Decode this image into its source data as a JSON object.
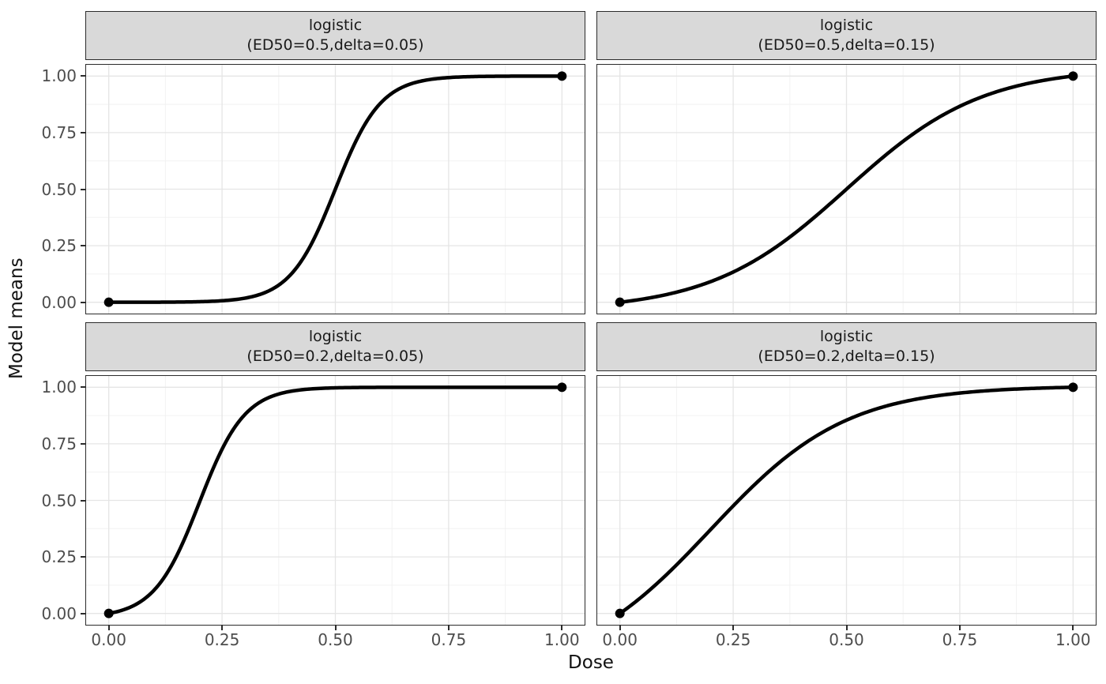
{
  "chart": {
    "xlabel": "Dose",
    "ylabel": "Model means",
    "x_ticks": {
      "values": [
        0,
        0.25,
        0.5,
        0.75,
        1
      ],
      "labels": [
        "0.00",
        "0.25",
        "0.50",
        "0.75",
        "1.00"
      ]
    },
    "y_ticks": {
      "values": [
        0,
        0.25,
        0.5,
        0.75,
        1
      ],
      "labels": [
        "0.00",
        "0.25",
        "0.50",
        "0.75",
        "1.00"
      ]
    },
    "minor_ticks": [
      0.125,
      0.375,
      0.625,
      0.875
    ],
    "expansion": 0.05,
    "colors": {
      "curve": "#000000",
      "strip_bg": "#d9d9d9",
      "panel_border": "#2b2b2b",
      "grid_major": "#e5e5e5",
      "grid_minor": "#f2f2f2",
      "axis_text": "#4d4d4d"
    }
  },
  "chart_data": {
    "type": "line",
    "title": "",
    "xlabel": "Dose",
    "ylabel": "Model means",
    "xlim": [
      0,
      1
    ],
    "ylim": [
      0,
      1
    ],
    "grid": true,
    "legend": "none",
    "facets": [
      {
        "strip_line1": "logistic",
        "strip_line2": "(ED50=0.5,delta=0.05)",
        "model": "logistic",
        "ED50": 0.5,
        "delta": 0.05,
        "x": [
          0,
          0.1,
          0.2,
          0.3,
          0.4,
          0.5,
          0.6,
          0.7,
          0.8,
          0.9,
          1
        ],
        "y": [
          0,
          0.0003,
          0.0024,
          0.0179,
          0.1192,
          0.5,
          0.8808,
          0.9821,
          0.9976,
          0.9997,
          1
        ],
        "endpoints": [
          [
            0,
            0
          ],
          [
            1,
            1
          ]
        ]
      },
      {
        "strip_line1": "logistic",
        "strip_line2": "(ED50=0.5,delta=0.15)",
        "model": "logistic",
        "ED50": 0.5,
        "delta": 0.15,
        "x": [
          0,
          0.1,
          0.2,
          0.3,
          0.4,
          0.5,
          0.6,
          0.7,
          0.8,
          0.9,
          1
        ],
        "y": [
          0,
          0.0328,
          0.091,
          0.1871,
          0.3274,
          0.5,
          0.6726,
          0.8129,
          0.909,
          0.9672,
          1
        ],
        "endpoints": [
          [
            0,
            0
          ],
          [
            1,
            1
          ]
        ]
      },
      {
        "strip_line1": "logistic",
        "strip_line2": "(ED50=0.2,delta=0.05)",
        "model": "logistic",
        "ED50": 0.2,
        "delta": 0.05,
        "x": [
          0,
          0.1,
          0.2,
          0.3,
          0.4,
          0.5,
          0.6,
          0.7,
          0.8,
          0.9,
          1
        ],
        "y": [
          0,
          0.1031,
          0.4909,
          0.8786,
          0.9817,
          0.9975,
          0.9997,
          1,
          1,
          1,
          1
        ],
        "endpoints": [
          [
            0,
            0
          ],
          [
            1,
            1
          ]
        ]
      },
      {
        "strip_line1": "logistic",
        "strip_line2": "(ED50=0.2,delta=0.15)",
        "model": "logistic",
        "ED50": 0.2,
        "delta": 0.15,
        "x": [
          0,
          0.1,
          0.2,
          0.3,
          0.4,
          0.5,
          0.6,
          0.7,
          0.8,
          0.9,
          1
        ],
        "y": [
          0,
          0.1661,
          0.3704,
          0.5748,
          0.7409,
          0.8546,
          0.9232,
          0.9623,
          0.9832,
          0.9943,
          1
        ],
        "endpoints": [
          [
            0,
            0
          ],
          [
            1,
            1
          ]
        ]
      }
    ]
  }
}
